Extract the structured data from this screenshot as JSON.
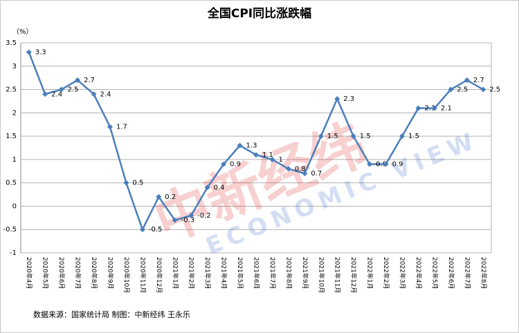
{
  "chart_data": {
    "type": "line",
    "title": "全国CPI同比涨跌幅",
    "y_unit": "（%）",
    "categories": [
      "2020年4月",
      "2020年5月",
      "2020年6月",
      "2020年7月",
      "2020年8月",
      "2020年9月",
      "2020年10月",
      "2020年11月",
      "2020年12月",
      "2021年1月",
      "2021年2月",
      "2021年3月",
      "2021年4月",
      "2021年5月",
      "2021年6月",
      "2021年7月",
      "2021年8月",
      "2021年9月",
      "2021年10月",
      "2021年11月",
      "2021年12月",
      "2022年1月",
      "2022年2月",
      "2022年3月",
      "2022年4月",
      "2022年5月",
      "2022年6月",
      "2022年7月",
      "2022年8月"
    ],
    "values": [
      3.3,
      2.4,
      2.5,
      2.7,
      2.4,
      1.7,
      0.5,
      -0.5,
      0.2,
      -0.3,
      -0.2,
      0.4,
      0.9,
      1.3,
      1.1,
      1,
      0.8,
      0.7,
      1.5,
      2.3,
      1.5,
      0.9,
      0.9,
      1.5,
      2.1,
      2.1,
      2.5,
      2.7,
      2.5
    ],
    "color": "#4a7ebb",
    "ylim": [
      -1,
      3.5
    ],
    "yticks": [
      -1,
      -0.5,
      0,
      0.5,
      1,
      1.5,
      2,
      2.5,
      3,
      3.5
    ],
    "grid": true,
    "source": "数据来源：国家统计局  制图：中新经纬 王永乐",
    "watermark": {
      "main": "中新经纬",
      "sub": "ECONOMIC VIEW"
    }
  }
}
